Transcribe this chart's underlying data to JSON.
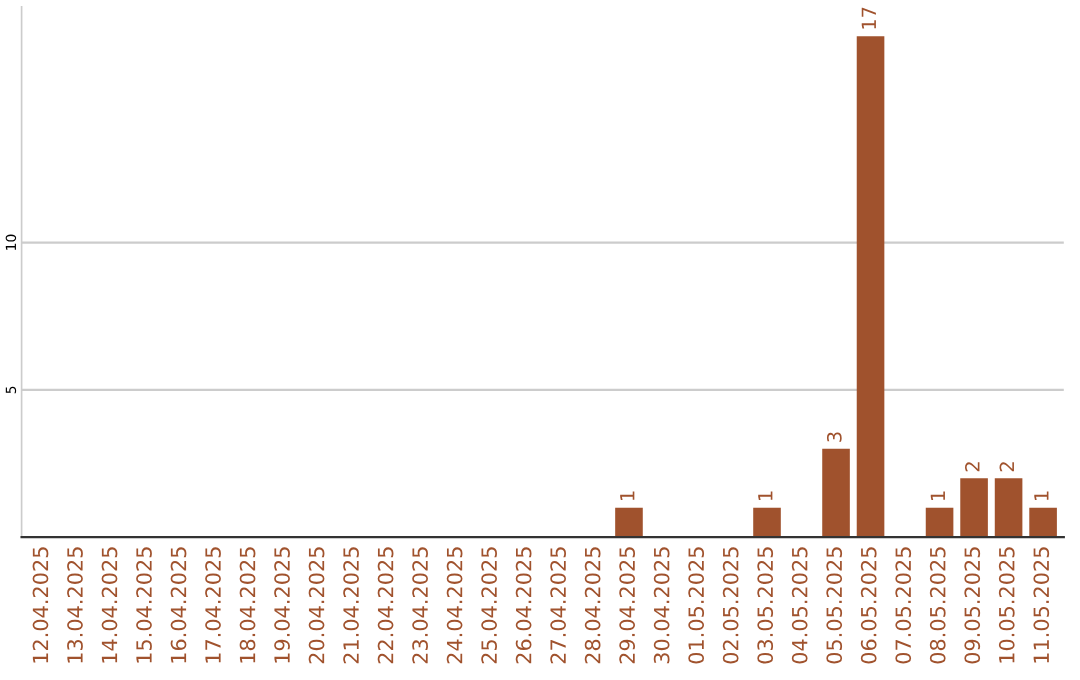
{
  "chart_data": {
    "type": "bar",
    "categories": [
      "12.04.2025",
      "13.04.2025",
      "14.04.2025",
      "15.04.2025",
      "16.04.2025",
      "17.04.2025",
      "18.04.2025",
      "19.04.2025",
      "20.04.2025",
      "21.04.2025",
      "22.04.2025",
      "23.04.2025",
      "24.04.2025",
      "25.04.2025",
      "26.04.2025",
      "27.04.2025",
      "28.04.2025",
      "29.04.2025",
      "30.04.2025",
      "01.05.2025",
      "02.05.2025",
      "03.05.2025",
      "04.05.2025",
      "05.05.2025",
      "06.05.2025",
      "07.05.2025",
      "08.05.2025",
      "09.05.2025",
      "10.05.2025",
      "11.05.2025"
    ],
    "values": [
      0,
      0,
      0,
      0,
      0,
      0,
      0,
      0,
      0,
      0,
      0,
      0,
      0,
      0,
      0,
      0,
      0,
      1,
      0,
      0,
      0,
      1,
      0,
      3,
      17,
      0,
      1,
      2,
      2,
      1
    ],
    "value_labels": [
      null,
      null,
      null,
      null,
      null,
      null,
      null,
      null,
      null,
      null,
      null,
      null,
      null,
      null,
      null,
      null,
      null,
      "1",
      null,
      null,
      null,
      "1",
      null,
      "3",
      "17",
      null,
      "1",
      "2",
      "2",
      "1"
    ],
    "color": "#a0522d",
    "ylim": [
      0,
      18
    ],
    "yticks": [
      5,
      10
    ],
    "grid": "y"
  }
}
